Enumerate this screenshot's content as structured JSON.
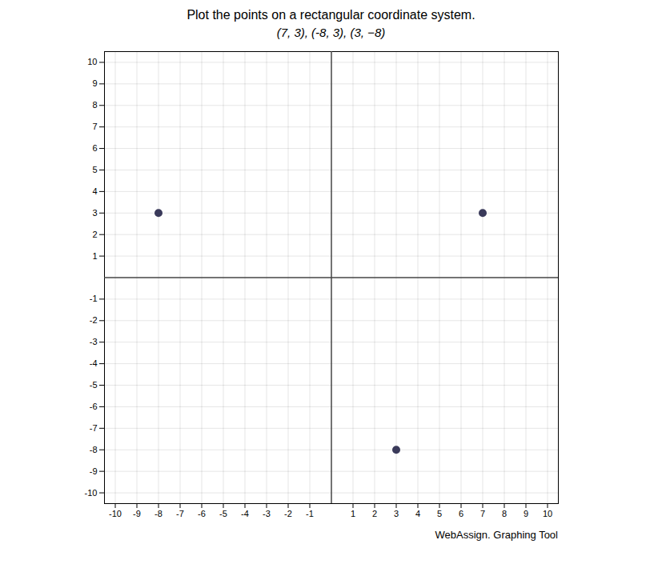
{
  "chart_data": {
    "type": "scatter",
    "title": "Plot the points on a rectangular coordinate system.",
    "subtitle": "(7, 3), (-8, 3), (3, −8)",
    "x": [
      7,
      -8,
      3
    ],
    "values": [
      3,
      3,
      -8
    ],
    "color": "#3a3a5a",
    "marker": "circle",
    "xlim": [
      -10.5,
      10.5
    ],
    "ylim": [
      -10.5,
      10.5
    ],
    "xticks": [
      -10,
      -9,
      -8,
      -7,
      -6,
      -5,
      -4,
      -3,
      -2,
      -1,
      1,
      2,
      3,
      4,
      5,
      6,
      7,
      8,
      9,
      10
    ],
    "yticks": [
      -10,
      -9,
      -8,
      -7,
      -6,
      -5,
      -4,
      -3,
      -2,
      -1,
      1,
      2,
      3,
      4,
      5,
      6,
      7,
      8,
      9,
      10
    ],
    "grid": true,
    "annotations": [
      "WebAssign. Graphing Tool"
    ]
  }
}
